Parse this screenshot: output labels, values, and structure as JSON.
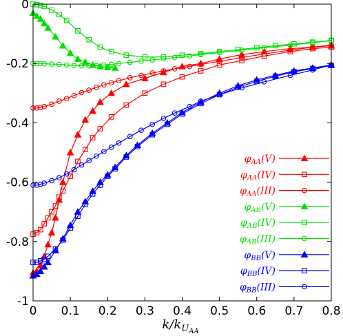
{
  "chart_data": {
    "type": "line",
    "xlabel": "k/k",
    "xlabel_sub": "U",
    "xlabel_subsub": "AA",
    "xlim": [
      0,
      0.8
    ],
    "ylim": [
      -1,
      0
    ],
    "xticks": [
      "0",
      "0.1",
      "0.2",
      "0.3",
      "0.4",
      "0.5",
      "0.6",
      "0.7",
      "0.8"
    ],
    "yticks": [
      "0",
      "-0.2",
      "-0.4",
      "-0.6",
      "-0.8",
      "-1"
    ],
    "xtick_values": [
      0,
      0.1,
      0.2,
      0.3,
      0.4,
      0.5,
      0.6,
      0.7,
      0.8
    ],
    "ytick_values": [
      0,
      -0.2,
      -0.4,
      -0.6,
      -0.8,
      -1
    ],
    "legend_position": "bottom-right",
    "series": [
      {
        "name": "φAA(V)",
        "sym": "φ",
        "sub": "AA",
        "roman": "V",
        "color": "#ff0000",
        "marker": "triangle-filled",
        "x": [
          0,
          0.01,
          0.02,
          0.03,
          0.04,
          0.05,
          0.06,
          0.07,
          0.08,
          0.1,
          0.12,
          0.14,
          0.16,
          0.18,
          0.21,
          0.25,
          0.3,
          0.35,
          0.4,
          0.45,
          0.5,
          0.56,
          0.62,
          0.69,
          0.75,
          0.8
        ],
        "y": [
          -0.905,
          -0.9,
          -0.88,
          -0.85,
          -0.81,
          -0.77,
          -0.72,
          -0.66,
          -0.6,
          -0.5,
          -0.44,
          -0.39,
          -0.36,
          -0.33,
          -0.3,
          -0.27,
          -0.25,
          -0.23,
          -0.21,
          -0.2,
          -0.185,
          -0.17,
          -0.16,
          -0.15,
          -0.145,
          -0.14
        ]
      },
      {
        "name": "φAA(IV)",
        "sym": "φ",
        "sub": "AA",
        "roman": "IV",
        "color": "#ff0000",
        "marker": "square-open",
        "x": [
          0,
          0.01,
          0.02,
          0.03,
          0.04,
          0.05,
          0.06,
          0.07,
          0.08,
          0.1,
          0.12,
          0.14,
          0.16,
          0.18,
          0.21,
          0.25,
          0.3,
          0.35,
          0.4,
          0.45,
          0.5,
          0.56,
          0.62,
          0.69,
          0.75,
          0.8
        ],
        "y": [
          -0.775,
          -0.77,
          -0.76,
          -0.74,
          -0.72,
          -0.7,
          -0.68,
          -0.65,
          -0.63,
          -0.58,
          -0.53,
          -0.49,
          -0.45,
          -0.42,
          -0.38,
          -0.34,
          -0.3,
          -0.27,
          -0.245,
          -0.225,
          -0.205,
          -0.19,
          -0.175,
          -0.16,
          -0.15,
          -0.145
        ]
      },
      {
        "name": "φAA(III)",
        "sym": "φ",
        "sub": "AA",
        "roman": "III",
        "color": "#ff0000",
        "marker": "circle-open",
        "x": [
          0,
          0.01,
          0.02,
          0.03,
          0.05,
          0.07,
          0.09,
          0.11,
          0.13,
          0.15,
          0.17,
          0.19,
          0.21,
          0.23,
          0.26,
          0.29,
          0.32,
          0.35,
          0.38,
          0.42,
          0.45,
          0.5,
          0.56,
          0.62,
          0.69,
          0.75,
          0.8
        ],
        "y": [
          -0.35,
          -0.35,
          -0.348,
          -0.345,
          -0.337,
          -0.327,
          -0.318,
          -0.308,
          -0.298,
          -0.29,
          -0.28,
          -0.272,
          -0.265,
          -0.258,
          -0.248,
          -0.24,
          -0.232,
          -0.225,
          -0.218,
          -0.21,
          -0.203,
          -0.193,
          -0.18,
          -0.168,
          -0.155,
          -0.145,
          -0.138
        ]
      },
      {
        "name": "φAB(V)",
        "sym": "φ",
        "sub": "AB",
        "roman": "V",
        "color": "#00e000",
        "marker": "triangle-filled",
        "x": [
          0,
          0.01,
          0.02,
          0.03,
          0.04,
          0.06,
          0.08,
          0.1,
          0.12,
          0.14,
          0.16,
          0.18,
          0.2,
          0.22
        ],
        "y": [
          -0.03,
          -0.04,
          -0.05,
          -0.065,
          -0.08,
          -0.11,
          -0.14,
          -0.165,
          -0.185,
          -0.195,
          -0.205,
          -0.21,
          -0.213,
          -0.215
        ]
      },
      {
        "name": "φAB(IV)",
        "sym": "φ",
        "sub": "AB",
        "roman": "IV",
        "color": "#00e000",
        "marker": "square-open",
        "x": [
          0,
          0.01,
          0.02,
          0.03,
          0.05,
          0.07,
          0.09,
          0.12,
          0.15,
          0.18,
          0.21,
          0.25,
          0.3,
          0.35,
          0.4,
          0.45,
          0.5,
          0.55,
          0.6,
          0.65,
          0.7,
          0.75,
          0.8
        ],
        "y": [
          0,
          -0.002,
          -0.004,
          -0.008,
          -0.02,
          -0.035,
          -0.055,
          -0.09,
          -0.12,
          -0.145,
          -0.16,
          -0.172,
          -0.178,
          -0.178,
          -0.172,
          -0.167,
          -0.16,
          -0.153,
          -0.147,
          -0.14,
          -0.134,
          -0.128,
          -0.122
        ]
      },
      {
        "name": "φAB(III)",
        "sym": "φ",
        "sub": "AB",
        "roman": "III",
        "color": "#00e000",
        "marker": "circle-open",
        "x": [
          0,
          0.01,
          0.02,
          0.03,
          0.05,
          0.07,
          0.09,
          0.11,
          0.13,
          0.15,
          0.17,
          0.19,
          0.21,
          0.23,
          0.26,
          0.29,
          0.32,
          0.35,
          0.38,
          0.42,
          0.45,
          0.5,
          0.56,
          0.62,
          0.69,
          0.75,
          0.8
        ],
        "y": [
          -0.2,
          -0.2,
          -0.2,
          -0.201,
          -0.202,
          -0.203,
          -0.205,
          -0.207,
          -0.208,
          -0.208,
          -0.207,
          -0.205,
          -0.203,
          -0.2,
          -0.196,
          -0.192,
          -0.188,
          -0.184,
          -0.18,
          -0.175,
          -0.17,
          -0.163,
          -0.155,
          -0.147,
          -0.138,
          -0.13,
          -0.123
        ]
      },
      {
        "name": "φBB(V)",
        "sym": "φ",
        "sub": "BB",
        "roman": "V",
        "color": "#0000ff",
        "marker": "triangle-filled",
        "x": [
          0,
          0.01,
          0.02,
          0.03,
          0.04,
          0.06,
          0.08,
          0.1,
          0.12,
          0.14,
          0.16,
          0.18,
          0.2,
          0.22,
          0.25,
          0.28,
          0.32,
          0.36,
          0.4,
          0.45,
          0.5,
          0.55,
          0.6,
          0.65,
          0.7,
          0.75,
          0.8
        ],
        "y": [
          -0.915,
          -0.91,
          -0.9,
          -0.885,
          -0.87,
          -0.83,
          -0.79,
          -0.745,
          -0.7,
          -0.665,
          -0.63,
          -0.6,
          -0.575,
          -0.55,
          -0.51,
          -0.475,
          -0.435,
          -0.4,
          -0.365,
          -0.33,
          -0.3,
          -0.275,
          -0.255,
          -0.24,
          -0.225,
          -0.215,
          -0.205
        ]
      },
      {
        "name": "φBB(IV)",
        "sym": "φ",
        "sub": "BB",
        "roman": "IV",
        "color": "#0000ff",
        "marker": "square-open",
        "x": [
          0,
          0.01,
          0.02,
          0.03,
          0.04,
          0.06,
          0.08,
          0.1,
          0.12,
          0.14,
          0.16,
          0.18,
          0.2,
          0.22,
          0.25,
          0.28,
          0.32,
          0.36,
          0.4,
          0.45,
          0.5,
          0.55,
          0.6,
          0.65,
          0.7,
          0.75,
          0.8
        ],
        "y": [
          -0.87,
          -0.87,
          -0.865,
          -0.86,
          -0.85,
          -0.825,
          -0.795,
          -0.755,
          -0.715,
          -0.675,
          -0.64,
          -0.61,
          -0.58,
          -0.555,
          -0.515,
          -0.48,
          -0.44,
          -0.405,
          -0.37,
          -0.335,
          -0.305,
          -0.28,
          -0.26,
          -0.243,
          -0.228,
          -0.217,
          -0.207
        ]
      },
      {
        "name": "φBB(III)",
        "sym": "φ",
        "sub": "BB",
        "roman": "III",
        "color": "#0000ff",
        "marker": "circle-open",
        "x": [
          0,
          0.01,
          0.02,
          0.03,
          0.05,
          0.07,
          0.09,
          0.11,
          0.13,
          0.15,
          0.17,
          0.19,
          0.21,
          0.23,
          0.26,
          0.29,
          0.32,
          0.35,
          0.38,
          0.42,
          0.45,
          0.5,
          0.56,
          0.62,
          0.69,
          0.75,
          0.8
        ],
        "y": [
          -0.61,
          -0.61,
          -0.607,
          -0.603,
          -0.595,
          -0.585,
          -0.572,
          -0.558,
          -0.542,
          -0.527,
          -0.512,
          -0.497,
          -0.482,
          -0.468,
          -0.446,
          -0.425,
          -0.405,
          -0.385,
          -0.367,
          -0.345,
          -0.327,
          -0.305,
          -0.282,
          -0.262,
          -0.24,
          -0.222,
          -0.205
        ]
      }
    ]
  }
}
